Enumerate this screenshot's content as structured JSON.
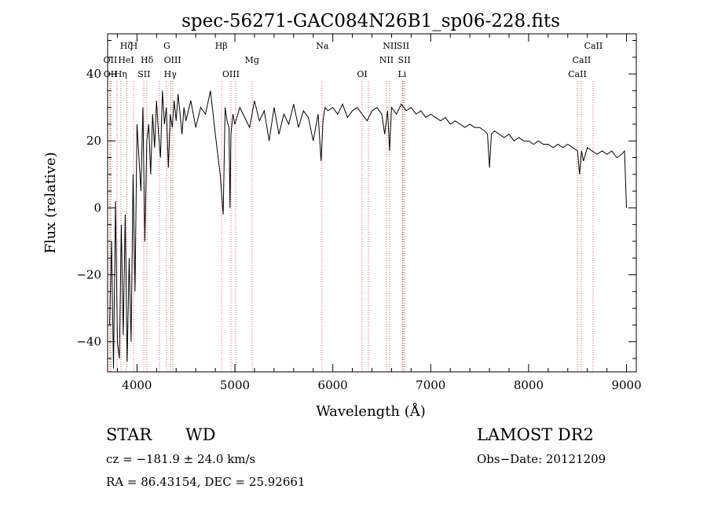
{
  "chart_data": {
    "type": "line",
    "title": "spec-56271-GAC084N26B1_sp06-228.fits",
    "xlabel": "Wavelength (Å)",
    "ylabel": "Flux (relative)",
    "xlim": [
      3700,
      9100
    ],
    "ylim": [
      -49,
      52
    ],
    "x_ticks": [
      4000,
      5000,
      6000,
      7000,
      8000,
      9000
    ],
    "x_tick_labels": [
      "4000",
      "5000",
      "6000",
      "7000",
      "8000",
      "9000"
    ],
    "y_ticks": [
      -40,
      -20,
      0,
      20,
      40
    ],
    "y_tick_labels": [
      "−40",
      "−20",
      "0",
      "20",
      "40"
    ],
    "grid": false,
    "line_color": "#000000",
    "series": [
      {
        "x": [
          3720,
          3740,
          3760,
          3780,
          3800,
          3820,
          3840,
          3860,
          3880,
          3900,
          3920,
          3940,
          3960,
          3980,
          4000,
          4020,
          4040,
          4060,
          4080,
          4100,
          4120,
          4140,
          4160,
          4180,
          4200,
          4220,
          4240,
          4260,
          4280,
          4300,
          4320,
          4340,
          4360,
          4380,
          4400,
          4420,
          4440,
          4460,
          4480,
          4500,
          4550,
          4600,
          4650,
          4700,
          4750,
          4800,
          4850,
          4880,
          4900,
          4920,
          4940,
          4950,
          4960,
          4980,
          5000,
          5050,
          5100,
          5150,
          5200,
          5250,
          5300,
          5350,
          5400,
          5450,
          5500,
          5550,
          5600,
          5650,
          5700,
          5750,
          5800,
          5850,
          5880,
          5900,
          5920,
          5950,
          6000,
          6050,
          6100,
          6150,
          6200,
          6250,
          6300,
          6350,
          6400,
          6450,
          6500,
          6530,
          6560,
          6580,
          6600,
          6650,
          6700,
          6750,
          6800,
          6850,
          6900,
          6950,
          7000,
          7050,
          7100,
          7150,
          7200,
          7250,
          7300,
          7350,
          7400,
          7450,
          7500,
          7550,
          7580,
          7600,
          7620,
          7650,
          7700,
          7750,
          7800,
          7850,
          7900,
          7950,
          8000,
          8050,
          8100,
          8150,
          8200,
          8250,
          8300,
          8350,
          8400,
          8450,
          8500,
          8520,
          8540,
          8560,
          8600,
          8650,
          8700,
          8750,
          8800,
          8850,
          8900,
          8950,
          8980,
          9000
        ],
        "y": [
          -35,
          -10,
          -48,
          2,
          -40,
          -45,
          -5,
          -38,
          -2,
          -46,
          -15,
          -40,
          10,
          -25,
          25,
          15,
          5,
          30,
          -10,
          20,
          25,
          10,
          28,
          18,
          32,
          22,
          15,
          35,
          25,
          30,
          12,
          28,
          24,
          32,
          26,
          34,
          28,
          22,
          30,
          26,
          32,
          24,
          30,
          28,
          35,
          22,
          10,
          -2,
          30,
          26,
          24,
          0,
          22,
          28,
          25,
          30,
          27,
          24,
          32,
          26,
          29,
          20,
          30,
          22,
          28,
          25,
          31,
          24,
          29,
          27,
          20,
          28,
          14,
          26,
          30,
          29,
          30,
          28,
          31,
          27,
          29,
          30,
          28,
          26,
          29,
          30,
          28,
          22,
          29,
          17,
          30,
          28,
          31,
          29,
          30,
          28,
          29,
          27,
          28,
          27,
          26,
          27,
          25,
          26,
          25,
          24,
          25,
          24,
          24,
          23,
          22,
          12,
          22,
          23,
          22,
          21,
          22,
          20,
          21,
          20,
          20,
          19,
          20,
          19,
          19,
          18,
          19,
          18,
          19,
          18,
          17,
          10,
          17,
          14,
          18,
          17,
          16,
          17,
          16,
          17,
          15,
          16,
          17,
          0
        ]
      }
    ],
    "line_markers": [
      {
        "label": "Hζ",
        "x": 3889,
        "row": 1
      },
      {
        "label": "H",
        "x": 3968,
        "row": 1
      },
      {
        "label": "G",
        "x": 4305,
        "row": 1
      },
      {
        "label": "Hβ",
        "x": 4861,
        "row": 1
      },
      {
        "label": "Na",
        "x": 5893,
        "row": 1
      },
      {
        "label": "NII",
        "x": 6584,
        "row": 1
      },
      {
        "label": "SII",
        "x": 6717,
        "row": 1
      },
      {
        "label": "CaII",
        "x": 8662,
        "row": 1
      },
      {
        "label": "OII",
        "x": 3727,
        "row": 2
      },
      {
        "label": "HeI",
        "x": 3889,
        "row": 2
      },
      {
        "label": "Hδ",
        "x": 4102,
        "row": 2
      },
      {
        "label": "OIII",
        "x": 4363,
        "row": 2
      },
      {
        "label": "Mg",
        "x": 5175,
        "row": 2
      },
      {
        "label": "NII",
        "x": 6548,
        "row": 2
      },
      {
        "label": "SII",
        "x": 6731,
        "row": 2
      },
      {
        "label": "CaII",
        "x": 8542,
        "row": 2
      },
      {
        "label": "OII",
        "x": 3729,
        "row": 3
      },
      {
        "label": "Hη",
        "x": 3835,
        "row": 3
      },
      {
        "label": "SII",
        "x": 4072,
        "row": 3
      },
      {
        "label": "Hγ",
        "x": 4340,
        "row": 3
      },
      {
        "label": "OIII",
        "x": 4959,
        "row": 3
      },
      {
        "label": "OI",
        "x": 6300,
        "row": 3
      },
      {
        "label": "Li",
        "x": 6708,
        "row": 3
      },
      {
        "label": "CaII",
        "x": 8498,
        "row": 3
      }
    ],
    "extra_marker_lines": [
      3798,
      4227,
      5007,
      6364
    ]
  },
  "info": {
    "object_type": "STAR",
    "subclass": "WD",
    "survey": "LAMOST DR2",
    "cz": "cz = −181.9 ± 24.0 km/s",
    "obs_date": "Obs−Date: 20121209",
    "coords": "RA =  86.43154, DEC =  25.92661"
  }
}
